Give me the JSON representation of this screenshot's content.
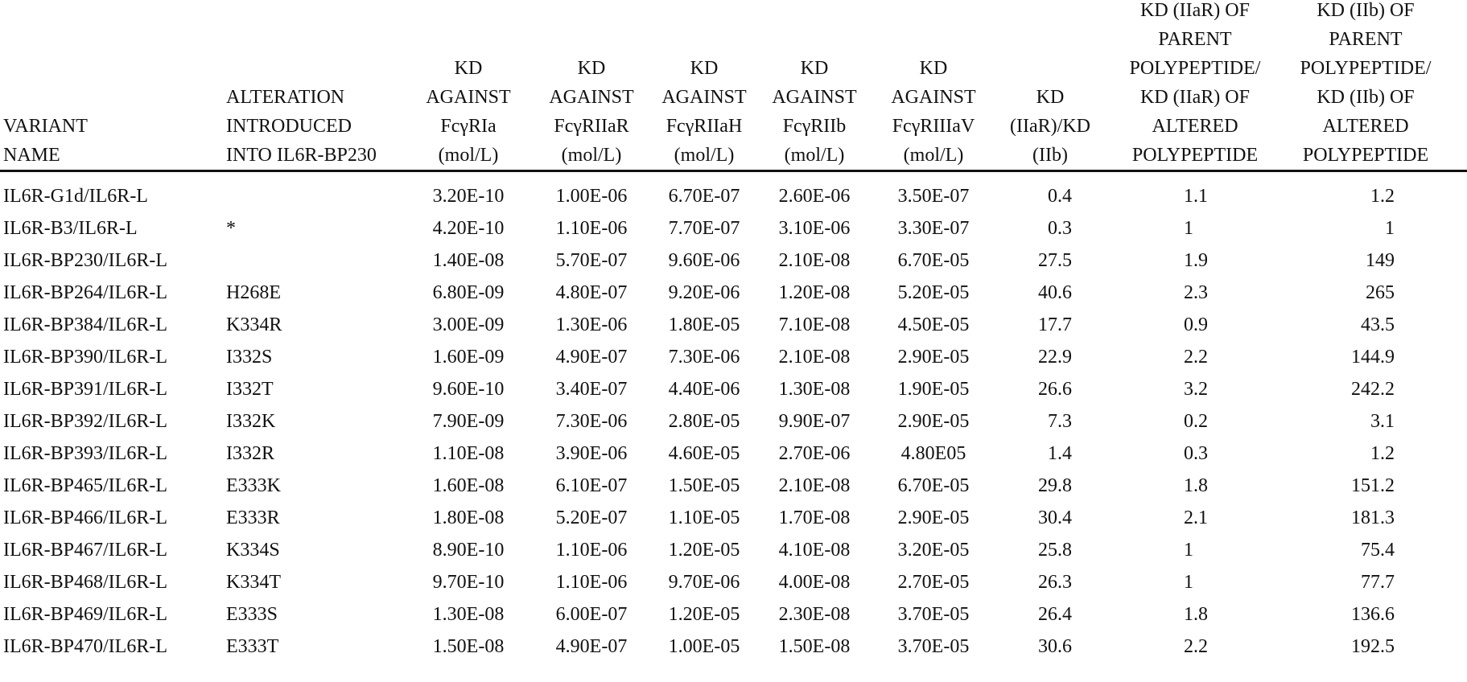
{
  "table": {
    "columns": [
      {
        "key": "variant",
        "header": [
          "VARIANT",
          "NAME"
        ]
      },
      {
        "key": "alteration",
        "header": [
          "ALTERATION",
          "INTRODUCED",
          "INTO IL6R-BP230"
        ]
      },
      {
        "key": "kd_ria",
        "header": [
          "KD",
          "AGAINST",
          "FcγRIa",
          "(mol/L)"
        ]
      },
      {
        "key": "kd_riiar",
        "header": [
          "KD",
          "AGAINST",
          "FcγRIIaR",
          "(mol/L)"
        ]
      },
      {
        "key": "kd_riiah",
        "header": [
          "KD",
          "AGAINST",
          "FcγRIIaH",
          "(mol/L)"
        ]
      },
      {
        "key": "kd_riib",
        "header": [
          "KD",
          "AGAINST",
          "FcγRIIb",
          "(mol/L)"
        ]
      },
      {
        "key": "kd_riiiav",
        "header": [
          "KD",
          "AGAINST",
          "FcγRIIIaV",
          "(mol/L)"
        ]
      },
      {
        "key": "ratio",
        "header": [
          "KD",
          "(IIaR)/KD",
          "(IIb)"
        ]
      },
      {
        "key": "parent_iiar",
        "header": [
          "KD (IIaR) OF",
          "PARENT",
          "POLYPEPTIDE/",
          "KD (IIaR) OF",
          "ALTERED",
          "POLYPEPTIDE"
        ]
      },
      {
        "key": "parent_iib",
        "header": [
          "KD (IIb) OF",
          "PARENT",
          "POLYPEPTIDE/",
          "KD (IIb) OF",
          "ALTERED",
          "POLYPEPTIDE"
        ]
      }
    ],
    "rows": [
      [
        "IL6R-G1d/IL6R-L",
        "",
        "3.20E-10",
        "1.00E-06",
        "6.70E-07",
        "2.60E-06",
        "3.50E-07",
        "0.4",
        "1.1",
        "1.2"
      ],
      [
        "IL6R-B3/IL6R-L",
        "*",
        "4.20E-10",
        "1.10E-06",
        "7.70E-07",
        "3.10E-06",
        "3.30E-07",
        "0.3",
        "1",
        "1"
      ],
      [
        "IL6R-BP230/IL6R-L",
        "",
        "1.40E-08",
        "5.70E-07",
        "9.60E-06",
        "2.10E-08",
        "6.70E-05",
        "27.5",
        "1.9",
        "149"
      ],
      [
        "IL6R-BP264/IL6R-L",
        "H268E",
        "6.80E-09",
        "4.80E-07",
        "9.20E-06",
        "1.20E-08",
        "5.20E-05",
        "40.6",
        "2.3",
        "265"
      ],
      [
        "IL6R-BP384/IL6R-L",
        "K334R",
        "3.00E-09",
        "1.30E-06",
        "1.80E-05",
        "7.10E-08",
        "4.50E-05",
        "17.7",
        "0.9",
        "43.5"
      ],
      [
        "IL6R-BP390/IL6R-L",
        "I332S",
        "1.60E-09",
        "4.90E-07",
        "7.30E-06",
        "2.10E-08",
        "2.90E-05",
        "22.9",
        "2.2",
        "144.9"
      ],
      [
        "IL6R-BP391/IL6R-L",
        "I332T",
        "9.60E-10",
        "3.40E-07",
        "4.40E-06",
        "1.30E-08",
        "1.90E-05",
        "26.6",
        "3.2",
        "242.2"
      ],
      [
        "IL6R-BP392/IL6R-L",
        "I332K",
        "7.90E-09",
        "7.30E-06",
        "2.80E-05",
        "9.90E-07",
        "2.90E-05",
        "7.3",
        "0.2",
        "3.1"
      ],
      [
        "IL6R-BP393/IL6R-L",
        "I332R",
        "1.10E-08",
        "3.90E-06",
        "4.60E-05",
        "2.70E-06",
        "4.80E05",
        "1.4",
        "0.3",
        "1.2"
      ],
      [
        "IL6R-BP465/IL6R-L",
        "E333K",
        "1.60E-08",
        "6.10E-07",
        "1.50E-05",
        "2.10E-08",
        "6.70E-05",
        "29.8",
        "1.8",
        "151.2"
      ],
      [
        "IL6R-BP466/IL6R-L",
        "E333R",
        "1.80E-08",
        "5.20E-07",
        "1.10E-05",
        "1.70E-08",
        "2.90E-05",
        "30.4",
        "2.1",
        "181.3"
      ],
      [
        "IL6R-BP467/IL6R-L",
        "K334S",
        "8.90E-10",
        "1.10E-06",
        "1.20E-05",
        "4.10E-08",
        "3.20E-05",
        "25.8",
        "1",
        "75.4"
      ],
      [
        "IL6R-BP468/IL6R-L",
        "K334T",
        "9.70E-10",
        "1.10E-06",
        "9.70E-06",
        "4.00E-08",
        "2.70E-05",
        "26.3",
        "1",
        "77.7"
      ],
      [
        "IL6R-BP469/IL6R-L",
        "E333S",
        "1.30E-08",
        "6.00E-07",
        "1.20E-05",
        "2.30E-08",
        "3.70E-05",
        "26.4",
        "1.8",
        "136.6"
      ],
      [
        "IL6R-BP470/IL6R-L",
        "E333T",
        "1.50E-08",
        "4.90E-07",
        "1.00E-05",
        "1.50E-08",
        "3.70E-05",
        "30.6",
        "2.2",
        "192.5"
      ]
    ]
  }
}
